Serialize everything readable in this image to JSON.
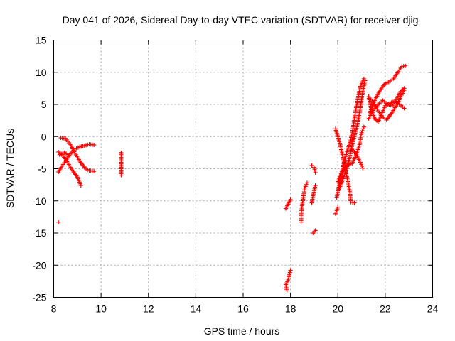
{
  "chart_data": {
    "type": "scatter",
    "title": "Day 041 of 2026, Sidereal Day-to-day VTEC variation (SDTVAR) for receiver djig",
    "xlabel": "GPS time / hours",
    "ylabel": "SDTVAR / TECUs",
    "xlim": [
      8,
      24
    ],
    "ylim": [
      -25,
      15
    ],
    "xticks": [
      "8",
      "10",
      "12",
      "14",
      "16",
      "18",
      "20",
      "22",
      "24"
    ],
    "yticks": [
      "15",
      "10",
      "5",
      "0",
      "-5",
      "-10",
      "-15",
      "-20",
      "-25"
    ],
    "grid": true,
    "marker": "+",
    "color": "#ff0000",
    "segments": [
      {
        "name": "early-a",
        "points": [
          [
            8.3,
            -0.2
          ],
          [
            8.5,
            -0.3
          ],
          [
            8.7,
            -1.2
          ],
          [
            8.9,
            -2.6
          ],
          [
            9.1,
            -3.8
          ],
          [
            9.3,
            -4.8
          ],
          [
            9.5,
            -5.3
          ],
          [
            9.7,
            -5.4
          ]
        ]
      },
      {
        "name": "early-b",
        "points": [
          [
            8.2,
            -2.4
          ],
          [
            8.4,
            -3.0
          ],
          [
            8.6,
            -4.1
          ],
          [
            8.8,
            -5.3
          ],
          [
            9.0,
            -6.3
          ],
          [
            9.15,
            -7.6
          ]
        ]
      },
      {
        "name": "early-c",
        "points": [
          [
            8.2,
            -5.5
          ],
          [
            8.35,
            -4.6
          ],
          [
            8.5,
            -3.8
          ],
          [
            8.7,
            -2.7
          ],
          [
            8.9,
            -1.9
          ],
          [
            9.1,
            -1.6
          ],
          [
            9.3,
            -1.4
          ],
          [
            9.5,
            -1.2
          ],
          [
            9.7,
            -1.3
          ]
        ]
      },
      {
        "name": "early-d",
        "points": [
          [
            8.25,
            -2.8
          ],
          [
            8.45,
            -2.5
          ],
          [
            8.6,
            -2.8
          ]
        ]
      },
      {
        "name": "isolated-a",
        "points": [
          [
            8.2,
            -13.3
          ]
        ]
      },
      {
        "name": "isolated-b",
        "points": [
          [
            10.85,
            -2.5
          ],
          [
            10.85,
            -4.0
          ],
          [
            10.85,
            -6.0
          ]
        ]
      },
      {
        "name": "s18-a",
        "points": [
          [
            17.8,
            -11.2
          ],
          [
            17.9,
            -10.5
          ],
          [
            18.0,
            -9.8
          ]
        ]
      },
      {
        "name": "s18-b",
        "points": [
          [
            17.85,
            -24.0
          ],
          [
            17.8,
            -23.0
          ],
          [
            17.9,
            -22.3
          ],
          [
            17.95,
            -21.5
          ],
          [
            18.0,
            -20.8
          ]
        ]
      },
      {
        "name": "s185-a",
        "points": [
          [
            18.45,
            -13.3
          ],
          [
            18.45,
            -12.0
          ],
          [
            18.5,
            -10.5
          ],
          [
            18.55,
            -9.2
          ],
          [
            18.6,
            -8.0
          ],
          [
            18.7,
            -7.2
          ]
        ]
      },
      {
        "name": "s19-a",
        "points": [
          [
            18.9,
            -4.5
          ],
          [
            19.0,
            -4.8
          ],
          [
            19.05,
            -5.6
          ]
        ]
      },
      {
        "name": "s19-b",
        "points": [
          [
            18.9,
            -10.3
          ],
          [
            18.95,
            -9.2
          ],
          [
            19.0,
            -8.4
          ],
          [
            19.05,
            -7.6
          ]
        ]
      },
      {
        "name": "s19-c",
        "points": [
          [
            18.95,
            -15.0
          ],
          [
            19.05,
            -14.6
          ]
        ]
      },
      {
        "name": "s20-a",
        "points": [
          [
            19.9,
            -12.0
          ],
          [
            20.0,
            -11.0
          ]
        ]
      },
      {
        "name": "s20-b",
        "points": [
          [
            19.9,
            1.2
          ],
          [
            20.0,
            0.0
          ],
          [
            20.1,
            -1.3
          ],
          [
            20.2,
            -3.0
          ],
          [
            20.3,
            -4.8
          ],
          [
            20.4,
            -6.5
          ],
          [
            20.5,
            -8.5
          ],
          [
            20.55,
            -10.2
          ],
          [
            20.7,
            -10.3
          ]
        ]
      },
      {
        "name": "s20-c",
        "points": [
          [
            19.95,
            -9.5
          ],
          [
            20.05,
            -7.6
          ],
          [
            20.15,
            -5.9
          ],
          [
            20.25,
            -4.2
          ],
          [
            20.35,
            -2.8
          ],
          [
            20.45,
            -1.6
          ],
          [
            20.55,
            -0.4
          ],
          [
            20.65,
            1.5
          ],
          [
            20.75,
            4.0
          ],
          [
            20.85,
            6.0
          ],
          [
            20.95,
            7.8
          ],
          [
            21.1,
            9.0
          ]
        ]
      },
      {
        "name": "s20-d",
        "points": [
          [
            20.0,
            -7.0
          ],
          [
            20.1,
            -6.0
          ],
          [
            20.25,
            -5.0
          ],
          [
            20.4,
            -4.4
          ],
          [
            20.6,
            -4.2
          ],
          [
            20.75,
            -3.0
          ],
          [
            20.9,
            -1.5
          ],
          [
            21.0,
            0.6
          ],
          [
            21.1,
            1.5
          ]
        ]
      },
      {
        "name": "s20-e",
        "points": [
          [
            20.05,
            -8.2
          ],
          [
            20.2,
            -6.8
          ],
          [
            20.35,
            -5.2
          ],
          [
            20.5,
            -3.2
          ],
          [
            20.6,
            -1.3
          ],
          [
            20.75,
            0.8
          ],
          [
            20.85,
            2.3
          ],
          [
            20.95,
            4.5
          ],
          [
            21.05,
            7.0
          ],
          [
            21.15,
            8.7
          ]
        ]
      },
      {
        "name": "s20-f",
        "points": [
          [
            20.6,
            -2.0
          ],
          [
            20.75,
            -2.6
          ],
          [
            20.95,
            -4.0
          ],
          [
            21.05,
            -4.9
          ]
        ]
      },
      {
        "name": "s21-a",
        "points": [
          [
            21.3,
            6.2
          ],
          [
            21.4,
            4.5
          ],
          [
            21.55,
            2.8
          ],
          [
            21.7,
            2.3
          ],
          [
            21.85,
            3.5
          ],
          [
            22.0,
            4.8
          ],
          [
            22.2,
            5.2
          ],
          [
            22.4,
            5.5
          ],
          [
            22.6,
            5.0
          ],
          [
            22.8,
            4.4
          ]
        ]
      },
      {
        "name": "s21-b",
        "points": [
          [
            21.3,
            2.8
          ],
          [
            21.45,
            3.8
          ],
          [
            21.6,
            4.6
          ],
          [
            21.75,
            5.2
          ],
          [
            21.9,
            5.6
          ],
          [
            22.1,
            5.0
          ],
          [
            22.3,
            4.8
          ],
          [
            22.5,
            6.0
          ],
          [
            22.65,
            7.0
          ],
          [
            22.8,
            7.5
          ]
        ]
      },
      {
        "name": "s21-c",
        "points": [
          [
            21.35,
            3.7
          ],
          [
            21.55,
            5.6
          ],
          [
            21.75,
            7.0
          ],
          [
            21.95,
            8.1
          ],
          [
            22.15,
            8.5
          ],
          [
            22.35,
            9.0
          ],
          [
            22.55,
            10.1
          ],
          [
            22.7,
            10.9
          ],
          [
            22.85,
            11.0
          ]
        ]
      },
      {
        "name": "s21-d",
        "points": [
          [
            21.4,
            5.8
          ],
          [
            21.55,
            5.0
          ],
          [
            21.7,
            4.0
          ],
          [
            21.85,
            3.2
          ],
          [
            22.05,
            2.6
          ],
          [
            22.3,
            3.8
          ],
          [
            22.5,
            5.0
          ],
          [
            22.65,
            6.2
          ],
          [
            22.8,
            7.2
          ]
        ]
      }
    ]
  }
}
